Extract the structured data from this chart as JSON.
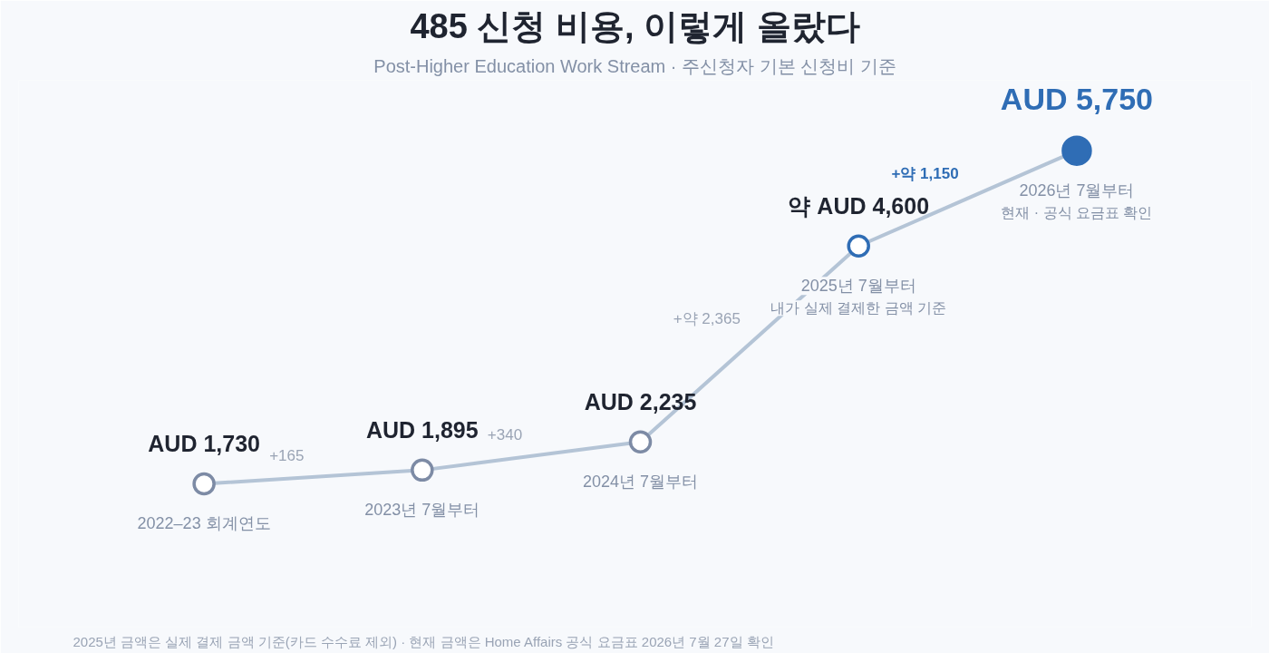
{
  "chart_data": {
    "type": "line",
    "title": "485 신청 비용, 이렇게 올랐다",
    "subtitle": "Post-Higher Education Work Stream · 주신청자 기본 신청비 기준",
    "categories": [
      "2022–23 회계연도",
      "2023년 7월부터",
      "2024년 7월부터",
      "2025년 7월부터\n내가 실제 결제한 금액 기준",
      "2026년 7월부터\n현재 · 공식 요금표 확인"
    ],
    "values": [
      1730,
      1895,
      2235,
      4600,
      5750
    ],
    "value_labels": [
      "AUD 1,730",
      "AUD 1,895",
      "AUD 2,235",
      "약 AUD 4,600",
      "AUD 5,750"
    ],
    "color": "#b4c4d6",
    "colors": [
      "#7d8ba5",
      "#7d8ba5",
      "#7d8ba5",
      "#2f6db5",
      "#2f6db5"
    ],
    "marker": "circle",
    "ylim": [
      0,
      6600
    ],
    "tick_labels": false,
    "grid": false,
    "annotations": [
      "+165",
      "+340",
      "+약 2,365",
      "+약 1,150",
      "2025년 금액은 실제 결제 금액 기준(카드 수수료 제외) · 현재 금액은 Home Affairs 공식 요금표 2026년 7월 27일 확인"
    ]
  }
}
